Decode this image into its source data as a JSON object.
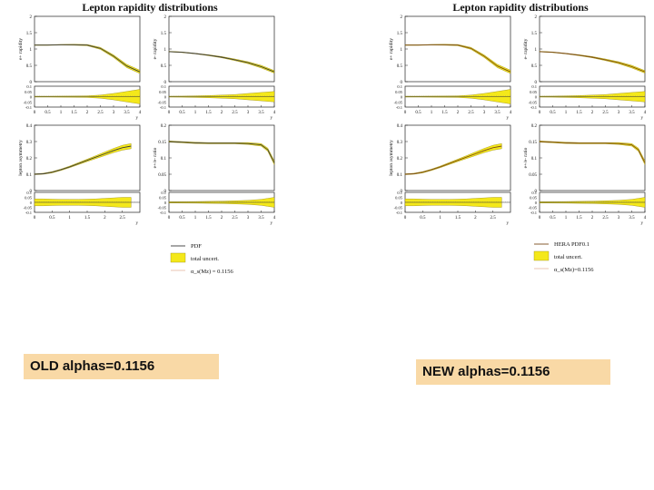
{
  "figures": {
    "old": {
      "title": "Lepton rapidity distributions",
      "panel_ylabels": [
        "e+ rapidity",
        "e- rapidity",
        "lepton asymmetry",
        "e+/e- ratio"
      ],
      "legend": [
        "PDF",
        "total uncert.",
        "α_s(Mz) = 0.1156"
      ],
      "caption": "OLD alphas=0.1156"
    },
    "new": {
      "title": "Lepton rapidity distributions",
      "panel_ylabels": [
        "e+ rapidity",
        "e- rapidity",
        "lepton asymmetry",
        "e+/e- ratio"
      ],
      "legend": [
        "HERA PDF0.1",
        "total uncert.",
        "α_s(Mz)=0.1156"
      ],
      "caption": "NEW alphas=0.1156"
    }
  },
  "chart_data": [
    {
      "type": "line",
      "panel": "e+ rapidity",
      "xlabel": "y",
      "ylabel": "e+ rapidity",
      "xlim": [
        0,
        4
      ],
      "ylim": [
        0,
        2
      ],
      "xticks": [
        "0",
        "0.5",
        "1",
        "1.5",
        "2",
        "2.5",
        "3",
        "3.5",
        "4"
      ],
      "yticks": [
        "0",
        "0.5",
        "1",
        "1.5",
        "2"
      ],
      "x": [
        0,
        0.5,
        1.0,
        1.5,
        2.0,
        2.5,
        3.0,
        3.5,
        4.0
      ],
      "values": [
        1.12,
        1.12,
        1.13,
        1.13,
        1.12,
        1.02,
        0.78,
        0.48,
        0.3
      ],
      "band": [
        0.01,
        0.01,
        0.01,
        0.015,
        0.02,
        0.03,
        0.04,
        0.05,
        0.05
      ],
      "ratio_yticks": [
        "0.1",
        "0.05",
        "0",
        "-0.05",
        "-0.1"
      ],
      "ratio_band": [
        0.004,
        0.004,
        0.005,
        0.006,
        0.008,
        0.015,
        0.03,
        0.05,
        0.07
      ]
    },
    {
      "type": "line",
      "panel": "e- rapidity",
      "xlabel": "y",
      "ylabel": "e- rapidity",
      "xlim": [
        0,
        4
      ],
      "ylim": [
        0,
        2
      ],
      "xticks": [
        "0",
        "0.5",
        "1",
        "1.5",
        "2",
        "2.5",
        "3",
        "3.5",
        "4"
      ],
      "yticks": [
        "0",
        "0.5",
        "1",
        "1.5",
        "2"
      ],
      "x": [
        0,
        0.5,
        1.0,
        1.5,
        2.0,
        2.5,
        3.0,
        3.5,
        4.0
      ],
      "values": [
        0.92,
        0.9,
        0.86,
        0.81,
        0.75,
        0.67,
        0.58,
        0.46,
        0.3
      ],
      "band": [
        0.01,
        0.01,
        0.01,
        0.015,
        0.02,
        0.025,
        0.03,
        0.04,
        0.04
      ],
      "ratio_yticks": [
        "0.1",
        "0.05",
        "0",
        "-0.05",
        "-0.1"
      ],
      "ratio_band": [
        0.004,
        0.005,
        0.008,
        0.01,
        0.015,
        0.02,
        0.03,
        0.04,
        0.05
      ]
    },
    {
      "type": "line",
      "panel": "lepton asymmetry",
      "xlabel": "y",
      "ylabel": "lepton asymmetry",
      "xlim": [
        0,
        3
      ],
      "ylim": [
        0,
        0.4
      ],
      "xticks": [
        "0",
        "0.5",
        "1",
        "1.5",
        "2",
        "2.5"
      ],
      "yticks": [
        "0",
        "0.1",
        "0.2",
        "0.3",
        "0.4"
      ],
      "x": [
        0,
        0.25,
        0.5,
        0.75,
        1.0,
        1.25,
        1.5,
        1.75,
        2.0,
        2.25,
        2.5,
        2.75
      ],
      "values": [
        0.1,
        0.103,
        0.112,
        0.127,
        0.145,
        0.165,
        0.185,
        0.205,
        0.225,
        0.245,
        0.262,
        0.272
      ],
      "band": [
        0.003,
        0.003,
        0.004,
        0.004,
        0.005,
        0.006,
        0.007,
        0.009,
        0.011,
        0.013,
        0.015,
        0.016
      ],
      "ratio_yticks": [
        "0.1",
        "0.05",
        "0",
        "-0.05",
        "-0.1"
      ],
      "ratio_band": [
        0.035,
        0.035,
        0.032,
        0.03,
        0.03,
        0.03,
        0.032,
        0.035,
        0.04,
        0.045,
        0.05,
        0.05
      ]
    },
    {
      "type": "line",
      "panel": "e+/e- ratio",
      "xlabel": "y",
      "ylabel": "e+/e- ratio",
      "xlim": [
        0,
        4
      ],
      "ylim": [
        0,
        0.2
      ],
      "xticks": [
        "0",
        "0.5",
        "1",
        "1.5",
        "2",
        "2.5",
        "3",
        "3.5",
        "4"
      ],
      "yticks": [
        "0",
        "0.05",
        "0.1",
        "0.15",
        "0.2"
      ],
      "x": [
        0,
        0.5,
        1.0,
        1.5,
        2.0,
        2.5,
        3.0,
        3.5,
        3.75,
        4.0
      ],
      "values": [
        0.15,
        0.148,
        0.146,
        0.145,
        0.145,
        0.145,
        0.144,
        0.14,
        0.125,
        0.085
      ],
      "band": [
        0.002,
        0.002,
        0.002,
        0.002,
        0.002,
        0.002,
        0.003,
        0.004,
        0.005,
        0.006
      ],
      "ratio_yticks": [
        "0.1",
        "0.05",
        "0",
        "-0.05",
        "-0.1"
      ],
      "ratio_band": [
        0.006,
        0.007,
        0.008,
        0.01,
        0.012,
        0.015,
        0.02,
        0.03,
        0.04,
        0.05
      ]
    }
  ]
}
